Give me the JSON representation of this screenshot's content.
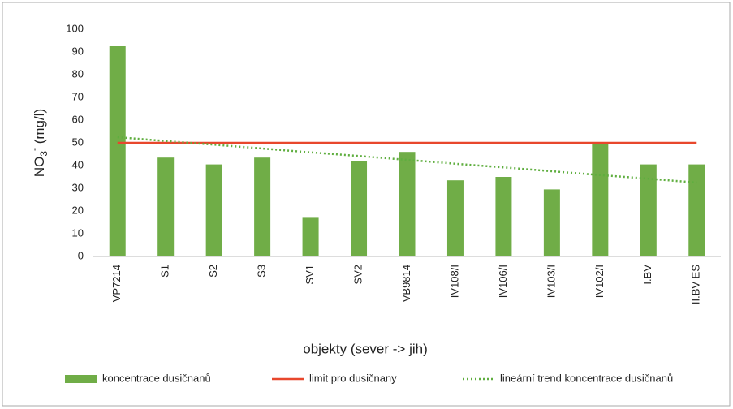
{
  "chart_data": {
    "type": "bar",
    "y_label": {
      "base": "NO",
      "sub": "3",
      "sup": "-",
      "unit": " (mg/l)"
    },
    "x_label": "objekty (sever -> jih)",
    "categories": [
      "VP7214",
      "S1",
      "S2",
      "S3",
      "SV1",
      "SV2",
      "VB9814",
      "IV108/I",
      "IV106/I",
      "IV103/I",
      "IV102/I",
      "I.BV",
      "II.BV ES"
    ],
    "series": [
      {
        "name": "koncentrace dusičnanů",
        "type": "bar",
        "color": "#70ad47",
        "values": [
          92.5,
          43.5,
          40.5,
          43.5,
          17,
          42,
          46,
          33.5,
          35,
          29.5,
          49.5,
          40.5,
          40.5
        ]
      },
      {
        "name": "limit pro dusičnany",
        "type": "line",
        "color": "#e8472c",
        "values": [
          50,
          50,
          50,
          50,
          50,
          50,
          50,
          50,
          50,
          50,
          50,
          50,
          50
        ]
      },
      {
        "name": "lineární trend koncentrace dusičnanů",
        "type": "dotted",
        "color": "#5fae3f",
        "values": [
          52.5,
          50.8,
          49.2,
          47.5,
          45.8,
          44.2,
          42.5,
          40.8,
          39.2,
          37.5,
          35.8,
          34.2,
          32.5
        ]
      }
    ],
    "ylim": [
      0,
      100
    ],
    "yticks": [
      0,
      10,
      20,
      30,
      40,
      50,
      60,
      70,
      80,
      90,
      100
    ],
    "grid": false,
    "legend": "bottom"
  }
}
